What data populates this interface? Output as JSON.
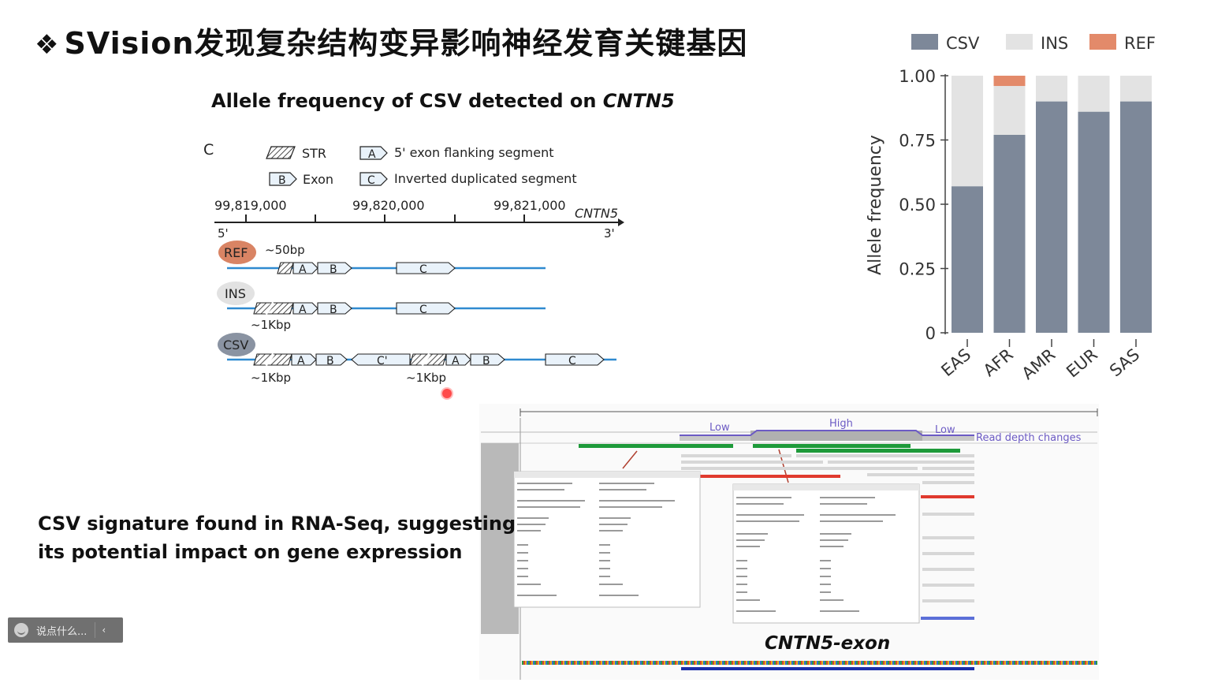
{
  "slide": {
    "bullet": "❖",
    "title": "SVision发现复杂结构变异影响神经发育关键基因",
    "panel_title_prefix": "Allele frequency of CSV detected on ",
    "panel_title_gene": "CNTN5",
    "rna_caption_line1": "CSV signature found in RNA-Seq, suggesting",
    "rna_caption_line2": "its potential impact on gene expression",
    "igv_gene_label": "CNTN5-exon",
    "comment_placeholder": "说点什么...",
    "comment_chevron": "‹"
  },
  "diagram": {
    "panel_letter": "C",
    "legend": {
      "str": "STR",
      "str_box": "",
      "exon": "Exon",
      "exon_box": "B",
      "flank": "5' exon flanking segment",
      "flank_box": "A",
      "inv": "Inverted duplicated segment",
      "inv_box": "C"
    },
    "coords": [
      "99,819,000",
      "99,820,000",
      "99,821,000"
    ],
    "gene": "CNTN5",
    "five_prime": "5'",
    "three_prime": "3'",
    "tracks": {
      "ref_label": "REF",
      "ref_note": "~50bp",
      "ins_label": "INS",
      "ins_note": "~1Kbp",
      "csv_label": "CSV",
      "csv_note_1": "~1Kbp",
      "csv_note_2": "~1Kbp",
      "seg_a": "A",
      "seg_b": "B",
      "seg_c": "C",
      "seg_c_prime": "C'"
    },
    "colors": {
      "ref": "#d98464",
      "ins": "#e2e2e2",
      "csv": "#8a93a2",
      "backbone": "#2f8ad0"
    }
  },
  "chart_data": {
    "type": "bar",
    "stacked": true,
    "categories": [
      "EAS",
      "AFR",
      "AMR",
      "EUR",
      "SAS"
    ],
    "series": [
      {
        "name": "CSV",
        "color": "#7d8899",
        "values": [
          0.57,
          0.77,
          0.9,
          0.86,
          0.9
        ]
      },
      {
        "name": "INS",
        "color": "#e3e3e3",
        "values": [
          0.43,
          0.19,
          0.1,
          0.14,
          0.1
        ]
      },
      {
        "name": "REF",
        "color": "#e38a6a",
        "values": [
          0.0,
          0.04,
          0.0,
          0.0,
          0.0
        ]
      }
    ],
    "ylabel": "Allele frequency",
    "ylim": [
      0,
      1
    ],
    "yticks": [
      0,
      0.25,
      0.5,
      0.75,
      1.0
    ],
    "ytick_labels": [
      "0",
      "0.25",
      "0.50",
      "0.75",
      "1.00"
    ],
    "legend_position": "top",
    "grid": false
  },
  "igv": {
    "low_left": "Low",
    "high": "High",
    "low_right": "Low",
    "read_depth": "Read depth changes"
  }
}
